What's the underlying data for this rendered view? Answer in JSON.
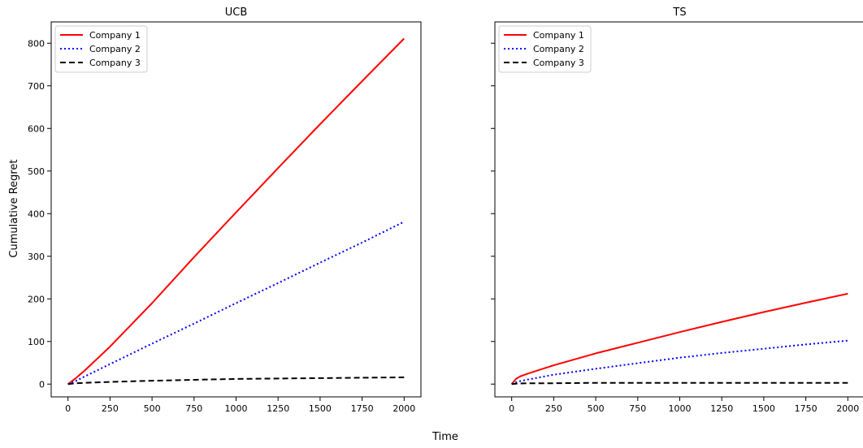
{
  "figure": {
    "ylabel": "Cumulative Regret",
    "xlabel": "Time"
  },
  "chart_data": [
    {
      "type": "line",
      "title": "UCB",
      "xlabel": "Time",
      "ylabel": "Cumulative Regret",
      "xlim": [
        -100,
        2100
      ],
      "ylim": [
        -30,
        850
      ],
      "xticks": [
        0,
        250,
        500,
        750,
        1000,
        1250,
        1500,
        1750,
        2000
      ],
      "yticks": [
        0,
        100,
        200,
        300,
        400,
        500,
        600,
        700,
        800
      ],
      "x": [
        0,
        50,
        100,
        250,
        500,
        750,
        1000,
        1250,
        1500,
        1750,
        2000
      ],
      "legend_position": "top-left",
      "grid": false,
      "series": [
        {
          "name": "Company 1",
          "color": "#ff0000",
          "style": "solid",
          "values": [
            0,
            15,
            32,
            88,
            190,
            298,
            403,
            507,
            610,
            711,
            811
          ]
        },
        {
          "name": "Company 2",
          "color": "#0000ff",
          "style": "dotted",
          "values": [
            0,
            8,
            18,
            47,
            95,
            142,
            190,
            237,
            285,
            332,
            381
          ]
        },
        {
          "name": "Company 3",
          "color": "#000000",
          "style": "dashed",
          "values": [
            0,
            2,
            3,
            5,
            8,
            10,
            12,
            13,
            14,
            15,
            16
          ]
        }
      ]
    },
    {
      "type": "line",
      "title": "TS",
      "xlabel": "Time",
      "ylabel": "Cumulative Regret",
      "xlim": [
        -100,
        2100
      ],
      "ylim": [
        -30,
        850
      ],
      "xticks": [
        0,
        250,
        500,
        750,
        1000,
        1250,
        1500,
        1750,
        2000
      ],
      "yticks": [
        0,
        100,
        200,
        300,
        400,
        500,
        600,
        700,
        800
      ],
      "x": [
        0,
        25,
        50,
        100,
        250,
        500,
        750,
        1000,
        1250,
        1500,
        1750,
        2000
      ],
      "legend_position": "top-left",
      "grid": false,
      "series": [
        {
          "name": "Company 1",
          "color": "#ff0000",
          "style": "solid",
          "values": [
            0,
            12,
            18,
            25,
            44,
            72,
            97,
            122,
            146,
            169,
            191,
            212
          ]
        },
        {
          "name": "Company 2",
          "color": "#0000ff",
          "style": "dotted",
          "values": [
            0,
            4,
            7,
            11,
            22,
            36,
            49,
            62,
            73,
            83,
            93,
            102
          ]
        },
        {
          "name": "Company 3",
          "color": "#000000",
          "style": "dashed",
          "values": [
            0,
            1,
            1.5,
            2,
            2,
            3,
            3,
            3,
            3,
            3,
            3,
            3
          ]
        }
      ]
    }
  ]
}
